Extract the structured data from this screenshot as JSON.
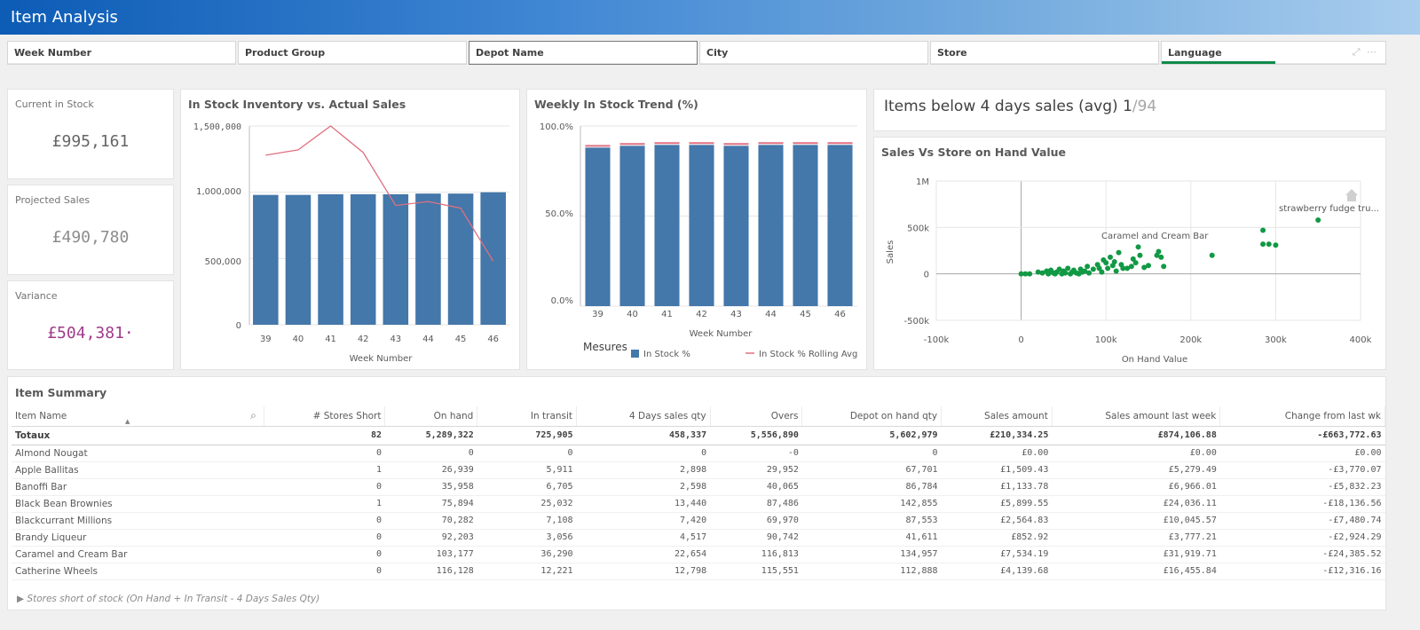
{
  "app": {
    "title": "Item Analysis"
  },
  "filters": [
    {
      "label": "Week Number"
    },
    {
      "label": "Product Group"
    },
    {
      "label": "Depot Name"
    },
    {
      "label": "City"
    },
    {
      "label": "Store"
    },
    {
      "label": "Language"
    }
  ],
  "kpis": {
    "current_stock": {
      "label": "Current in Stock",
      "value": "£995,161",
      "color": "#666666"
    },
    "projected_sales": {
      "label": "Projected Sales",
      "value": "£490,780",
      "color": "#8c8c8c"
    },
    "variance": {
      "label": "Variance",
      "value": "£504,381·",
      "color": "#a03a8a"
    }
  },
  "inventory_chart": {
    "title": "In Stock Inventory vs. Actual Sales",
    "xlabel": "Week Number",
    "yticks": [
      "1,500,000",
      "1,000,000",
      "500,000",
      "0"
    ],
    "categories": [
      "39",
      "40",
      "41",
      "42",
      "43",
      "44",
      "45",
      "46"
    ],
    "bar_color": "#4477aa",
    "line_color": "#e07080"
  },
  "trend_chart": {
    "title": "Weekly In Stock Trend (%)",
    "xlabel": "Week Number",
    "yticks": [
      "100.0%",
      "50.0%",
      "0.0%"
    ],
    "categories": [
      "39",
      "40",
      "41",
      "42",
      "43",
      "44",
      "45",
      "46"
    ],
    "legend_title": "Mesures",
    "legend": [
      "In Stock %",
      "In Stock % Rolling Avg"
    ]
  },
  "items_below": {
    "text": "Items below 4 days sales (avg)",
    "count": "1",
    "total": "/94"
  },
  "scatter_chart": {
    "title": "Sales Vs Store on Hand Value",
    "xlabel": "On Hand Value",
    "ylabel": "Sales",
    "xticks": [
      "-100k",
      "0",
      "100k",
      "200k",
      "300k",
      "400k"
    ],
    "yticks": [
      "1M",
      "500k",
      "0",
      "-500k"
    ],
    "annotations": [
      "strawberry fudge tru...",
      "Caramel and Cream Bar"
    ],
    "point_color": "#119944"
  },
  "chart_data": [
    {
      "type": "bar",
      "title": "In Stock Inventory vs. Actual Sales",
      "xlabel": "Week Number",
      "categories": [
        "39",
        "40",
        "41",
        "42",
        "43",
        "44",
        "45",
        "46"
      ],
      "ylim": [
        0,
        1500000
      ],
      "series": [
        {
          "values": [
            980000,
            980000,
            985000,
            985000,
            985000,
            990000,
            990000,
            1000000
          ]
        },
        {
          "values": [
            1280000,
            1320000,
            1500000,
            1300000,
            900000,
            930000,
            880000,
            480000
          ]
        }
      ]
    },
    {
      "type": "bar",
      "title": "Weekly In Stock Trend (%)",
      "xlabel": "Week Number",
      "categories": [
        "39",
        "40",
        "41",
        "42",
        "43",
        "44",
        "45",
        "46"
      ],
      "ylim": [
        0,
        100
      ],
      "series": [
        {
          "name": "In Stock %",
          "values": [
            88,
            89,
            89.5,
            89.5,
            89,
            89.5,
            89.5,
            89.5
          ]
        },
        {
          "name": "In Stock % Rolling Avg",
          "values": [
            89,
            90,
            90.5,
            90.5,
            90,
            90.5,
            90.5,
            90.5
          ]
        }
      ]
    },
    {
      "type": "scatter",
      "title": "Sales Vs Store on Hand Value",
      "xlabel": "On Hand Value",
      "ylabel": "Sales",
      "xlim": [
        -100000,
        400000
      ],
      "ylim": [
        -500000,
        1000000
      ],
      "points": [
        [
          0,
          0
        ],
        [
          5000,
          0
        ],
        [
          10000,
          0
        ],
        [
          20000,
          20000
        ],
        [
          25000,
          10000
        ],
        [
          30000,
          30000
        ],
        [
          32000,
          0
        ],
        [
          35000,
          40000
        ],
        [
          38000,
          10000
        ],
        [
          40000,
          0
        ],
        [
          42000,
          20000
        ],
        [
          45000,
          50000
        ],
        [
          48000,
          0
        ],
        [
          50000,
          30000
        ],
        [
          52000,
          10000
        ],
        [
          55000,
          60000
        ],
        [
          58000,
          0
        ],
        [
          60000,
          20000
        ],
        [
          62000,
          40000
        ],
        [
          65000,
          10000
        ],
        [
          68000,
          0
        ],
        [
          70000,
          50000
        ],
        [
          72000,
          20000
        ],
        [
          75000,
          30000
        ],
        [
          78000,
          80000
        ],
        [
          80000,
          10000
        ],
        [
          85000,
          50000
        ],
        [
          90000,
          100000
        ],
        [
          92000,
          60000
        ],
        [
          95000,
          20000
        ],
        [
          97000,
          150000
        ],
        [
          100000,
          120000
        ],
        [
          102000,
          60000
        ],
        [
          105000,
          180000
        ],
        [
          108000,
          90000
        ],
        [
          110000,
          130000
        ],
        [
          112000,
          30000
        ],
        [
          115000,
          230000
        ],
        [
          118000,
          100000
        ],
        [
          120000,
          60000
        ],
        [
          125000,
          60000
        ],
        [
          130000,
          80000
        ],
        [
          132000,
          160000
        ],
        [
          135000,
          120000
        ],
        [
          138000,
          290000
        ],
        [
          140000,
          200000
        ],
        [
          145000,
          70000
        ],
        [
          150000,
          90000
        ],
        [
          160000,
          200000
        ],
        [
          162000,
          240000
        ],
        [
          165000,
          180000
        ],
        [
          168000,
          80000
        ],
        [
          225000,
          200000
        ],
        [
          285000,
          470000
        ],
        [
          285000,
          320000
        ],
        [
          292000,
          320000
        ],
        [
          300000,
          310000
        ],
        [
          350000,
          580000
        ]
      ]
    }
  ],
  "summary": {
    "title": "Item Summary",
    "columns": [
      "Item Name",
      "# Stores Short",
      "On hand",
      "In transit",
      "4 Days sales qty",
      "Overs",
      "Depot on hand qty",
      "Sales amount",
      "Sales amount last week",
      "Change from last wk"
    ],
    "total": [
      "Totaux",
      "82",
      "5,289,322",
      "725,905",
      "458,337",
      "5,556,890",
      "5,602,979",
      "£210,334.25",
      "£874,106.88",
      "-£663,772.63"
    ],
    "rows": [
      [
        "Almond Nougat",
        "0",
        "0",
        "0",
        "0",
        "-0",
        "0",
        "£0.00",
        "£0.00",
        "£0.00"
      ],
      [
        "Apple Ballitas",
        "1",
        "26,939",
        "5,911",
        "2,898",
        "29,952",
        "67,701",
        "£1,509.43",
        "£5,279.49",
        "-£3,770.07"
      ],
      [
        "Banoffi Bar",
        "0",
        "35,958",
        "6,705",
        "2,598",
        "40,065",
        "86,784",
        "£1,133.78",
        "£6,966.01",
        "-£5,832.23"
      ],
      [
        "Black Bean Brownies",
        "1",
        "75,894",
        "25,032",
        "13,440",
        "87,486",
        "142,855",
        "£5,899.55",
        "£24,036.11",
        "-£18,136.56"
      ],
      [
        "Blackcurrant Millions",
        "0",
        "70,282",
        "7,108",
        "7,420",
        "69,970",
        "87,553",
        "£2,564.83",
        "£10,045.57",
        "-£7,480.74"
      ],
      [
        "Brandy Liqueur",
        "0",
        "92,203",
        "3,056",
        "4,517",
        "90,742",
        "41,611",
        "£852.92",
        "£3,777.21",
        "-£2,924.29"
      ],
      [
        "Caramel and Cream Bar",
        "0",
        "103,177",
        "36,290",
        "22,654",
        "116,813",
        "134,957",
        "£7,534.19",
        "£31,919.71",
        "-£24,385.52"
      ],
      [
        "Catherine Wheels",
        "0",
        "116,128",
        "12,221",
        "12,798",
        "115,551",
        "112,888",
        "£4,139.68",
        "£16,455.84",
        "-£12,316.16"
      ]
    ],
    "footer": "Stores short of stock (On Hand + In Transit - 4 Days Sales Qty)"
  }
}
